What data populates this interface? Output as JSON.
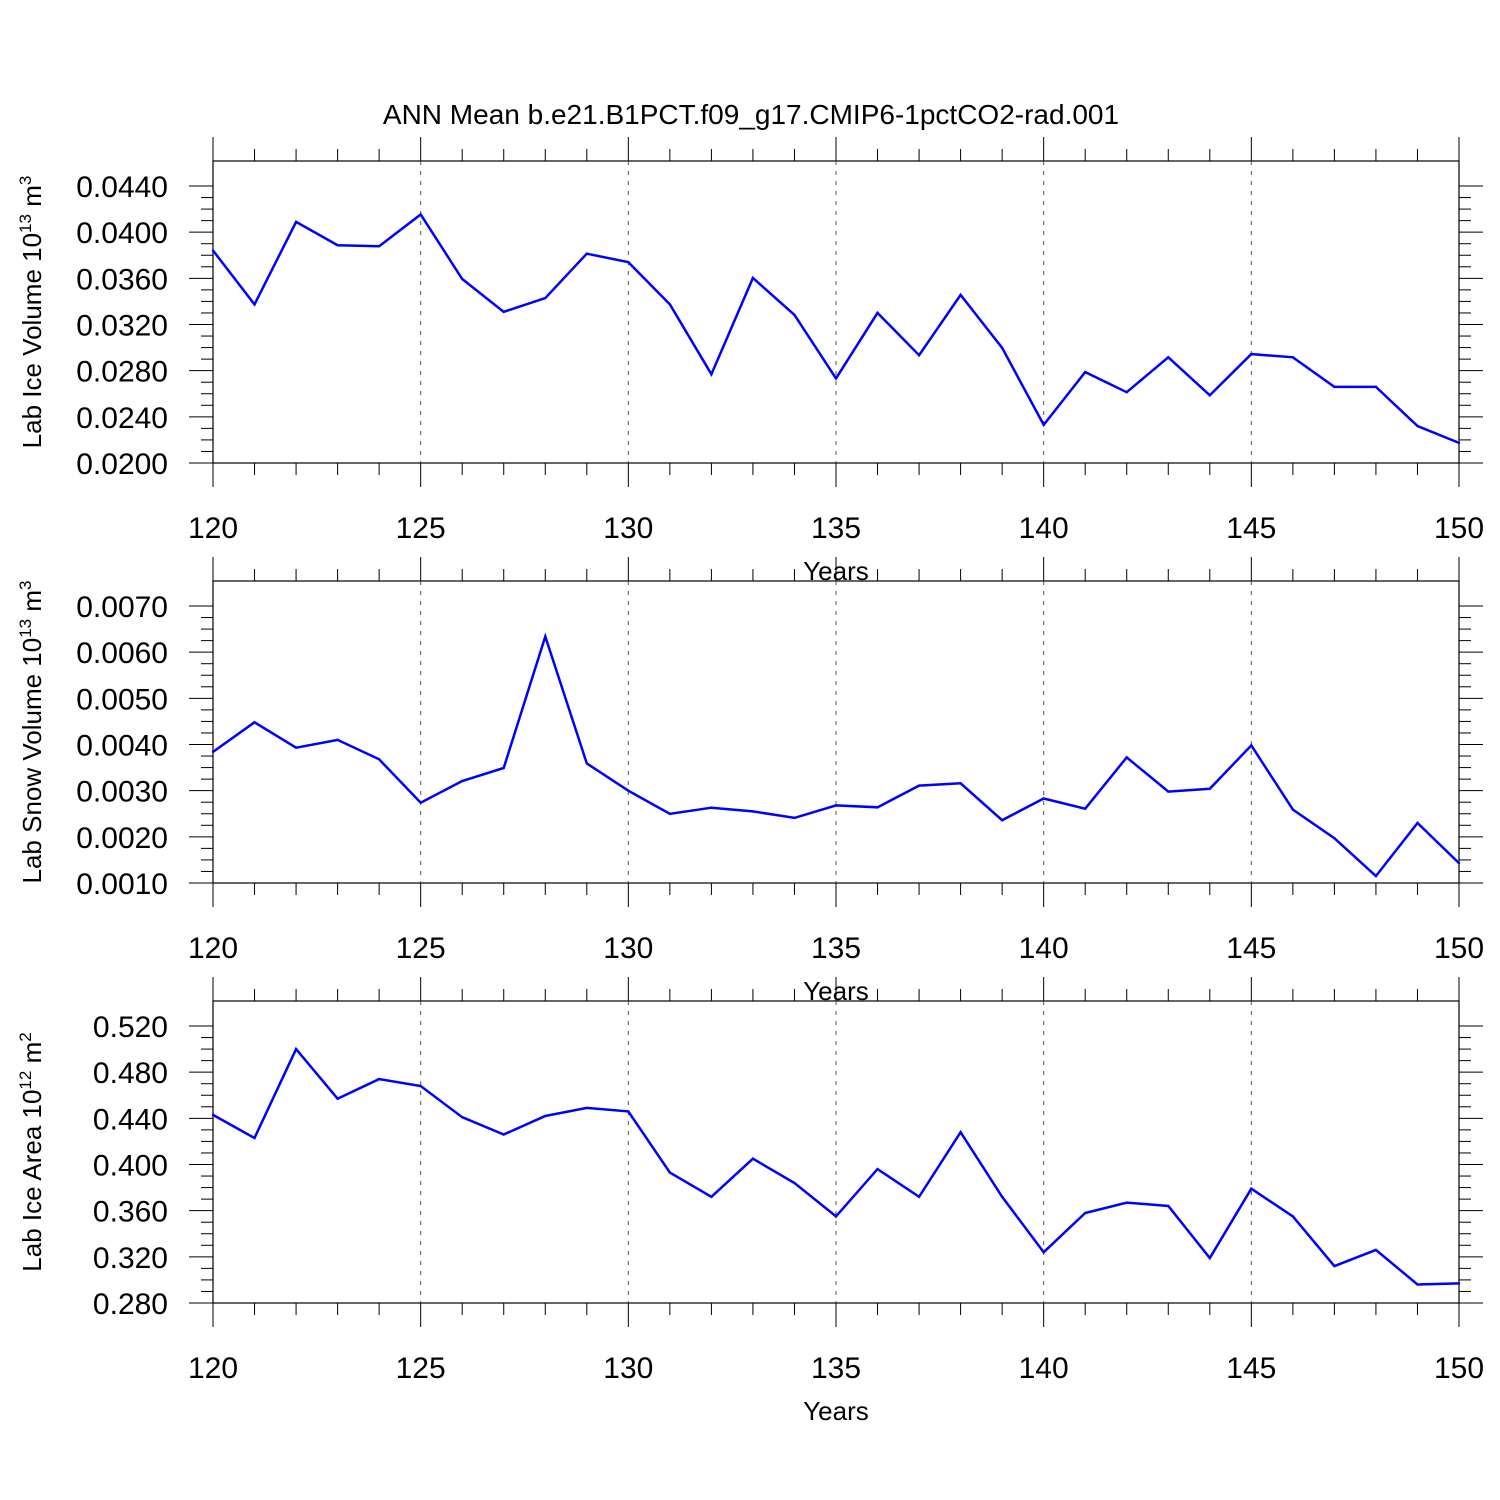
{
  "title": "ANN Mean b.e21.B1PCT.f09_g17.CMIP6-1pctCO2-rad.001",
  "line_color": "#0000ff",
  "chart_data": [
    {
      "type": "line",
      "title": "",
      "xlabel": "Years",
      "ylabel": {
        "text": "Lab Ice Volume 10",
        "exp": "13",
        "unit": " m",
        "unit_exp": "3"
      },
      "xlim": [
        120,
        150
      ],
      "ylim": [
        0.02,
        0.0462
      ],
      "grid": "dashed vertical at major x ticks",
      "xticks": [
        "120",
        "125",
        "130",
        "135",
        "140",
        "145",
        "150"
      ],
      "yticks": [
        "0.0200",
        "0.0240",
        "0.0280",
        "0.0320",
        "0.0360",
        "0.0400",
        "0.0440"
      ],
      "x": [
        120,
        121,
        122,
        123,
        124,
        125,
        126,
        127,
        128,
        129,
        130,
        131,
        132,
        133,
        134,
        135,
        136,
        137,
        138,
        139,
        140,
        141,
        142,
        143,
        144,
        145,
        146,
        147,
        148,
        149,
        150
      ],
      "series": [
        {
          "values": [
            0.0401,
            0.035,
            0.0428,
            0.0406,
            0.0405,
            0.0435,
            0.0374,
            0.0343,
            0.0356,
            0.0398,
            0.039,
            0.035,
            0.0284,
            0.0375,
            0.034,
            0.028,
            0.0342,
            0.0302,
            0.0359,
            0.0309,
            0.0236,
            0.0286,
            0.0267,
            0.03,
            0.0264,
            0.0303,
            0.03,
            0.0272,
            0.0272,
            0.0235,
            0.0219
          ]
        }
      ]
    },
    {
      "type": "line",
      "title": "",
      "xlabel": "Years",
      "ylabel": {
        "text": "Lab Snow Volume 10",
        "exp": "13",
        "unit": " m",
        "unit_exp": "3"
      },
      "xlim": [
        120,
        150
      ],
      "ylim": [
        0.001,
        0.007
      ],
      "grid": "dashed vertical at major x ticks",
      "xticks": [
        "120",
        "125",
        "130",
        "135",
        "140",
        "145",
        "150"
      ],
      "yticks": [
        "0.0010",
        "0.0020",
        "0.0030",
        "0.0040",
        "0.0050",
        "0.0060",
        "0.0070"
      ],
      "x": [
        120,
        121,
        122,
        123,
        124,
        125,
        126,
        127,
        128,
        129,
        130,
        131,
        132,
        133,
        134,
        135,
        136,
        137,
        138,
        139,
        140,
        141,
        142,
        143,
        144,
        145,
        146,
        147,
        148,
        149,
        150
      ],
      "series": [
        {
          "values": [
            0.00384,
            0.00448,
            0.00393,
            0.0041,
            0.00368,
            0.00274,
            0.00321,
            0.00349,
            0.00634,
            0.00359,
            0.003,
            0.0025,
            0.00263,
            0.00255,
            0.00241,
            0.00268,
            0.00264,
            0.00311,
            0.00316,
            0.00236,
            0.00283,
            0.00261,
            0.00372,
            0.00298,
            0.00304,
            0.00398,
            0.00259,
            0.00197,
            0.00115,
            0.0023,
            0.00143
          ]
        }
      ]
    },
    {
      "type": "line",
      "title": "",
      "xlabel": "Years",
      "ylabel": {
        "text": "Lab Ice Area 10",
        "exp": "12",
        "unit": " m",
        "unit_exp": "2"
      },
      "xlim": [
        120,
        150
      ],
      "ylim": [
        0.28,
        0.52
      ],
      "grid": "dashed vertical at major x ticks",
      "xticks": [
        "120",
        "125",
        "130",
        "135",
        "140",
        "145",
        "150"
      ],
      "yticks": [
        "0.280",
        "0.320",
        "0.360",
        "0.400",
        "0.440",
        "0.480",
        "0.520"
      ],
      "x": [
        120,
        121,
        122,
        123,
        124,
        125,
        126,
        127,
        128,
        129,
        130,
        131,
        132,
        133,
        134,
        135,
        136,
        137,
        138,
        139,
        140,
        141,
        142,
        143,
        144,
        145,
        146,
        147,
        148,
        149,
        150
      ],
      "series": [
        {
          "values": [
            0.443,
            0.423,
            0.5,
            0.457,
            0.474,
            0.468,
            0.441,
            0.426,
            0.442,
            0.449,
            0.446,
            0.393,
            0.372,
            0.405,
            0.384,
            0.355,
            0.396,
            0.372,
            0.428,
            0.372,
            0.324,
            0.358,
            0.367,
            0.364,
            0.319,
            0.379,
            0.355,
            0.312,
            0.326,
            0.296,
            0.297
          ]
        }
      ]
    }
  ]
}
